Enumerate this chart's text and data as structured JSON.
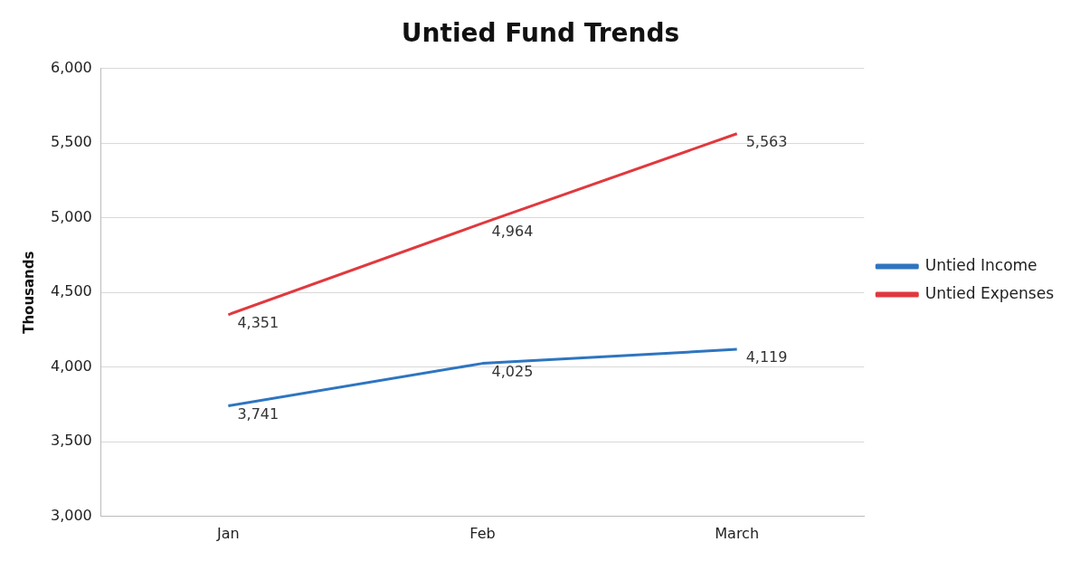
{
  "chart_data": {
    "type": "line",
    "title": "Untied Fund Trends",
    "ylabel": "Thousands",
    "categories": [
      "Jan",
      "Feb",
      "March"
    ],
    "series": [
      {
        "name": "Untied Income",
        "color": "#2e75c0",
        "values": [
          3741,
          4025,
          4119
        ],
        "value_labels": [
          "3,741",
          "4,025",
          "4,119"
        ]
      },
      {
        "name": "Untied Expenses",
        "color": "#e0393e",
        "values": [
          4351,
          4964,
          5563
        ],
        "value_labels": [
          "4,351",
          "4,964",
          "5,563"
        ]
      }
    ],
    "ylim": [
      3000,
      6000
    ],
    "yticks": [
      {
        "value": 3000,
        "label": "3,000"
      },
      {
        "value": 3500,
        "label": "3,500"
      },
      {
        "value": 4000,
        "label": "4,000"
      },
      {
        "value": 4500,
        "label": "4,500"
      },
      {
        "value": 5000,
        "label": "5,000"
      },
      {
        "value": 5500,
        "label": "5,500"
      },
      {
        "value": 6000,
        "label": "6,000"
      }
    ],
    "grid": "y",
    "legend": "right",
    "marker": "none",
    "line_style": "solid"
  }
}
